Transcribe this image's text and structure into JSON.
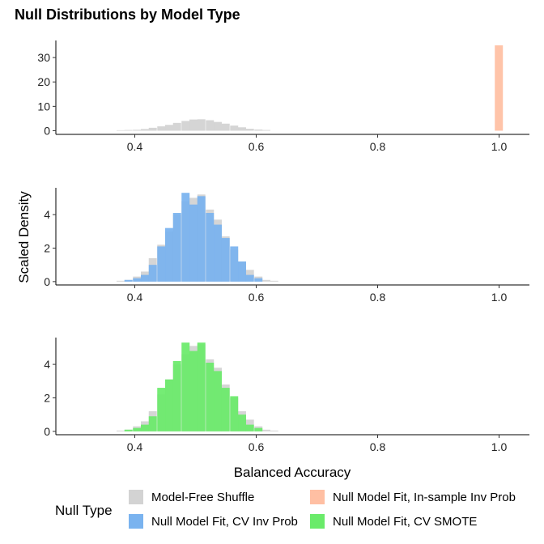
{
  "chart_data": {
    "type": "histogram-facets",
    "title": "Null Distributions by Model Type",
    "xlabel": "Balanced Accuracy",
    "ylabel": "Scaled Density",
    "xlim": [
      0.27,
      1.05
    ],
    "xticks": [
      0.4,
      0.6,
      0.8,
      1.0
    ],
    "xtick_labels": [
      "0.4",
      "0.6",
      "0.8",
      "1.0"
    ],
    "bin_width": 0.0133,
    "legend": {
      "title": "Null Type",
      "position": "bottom",
      "entries": [
        {
          "label": "Model-Free Shuffle",
          "color": "#d3d3d3"
        },
        {
          "label": "Null Model Fit, In-sample Inv Prob",
          "color": "#ffbfa3"
        },
        {
          "label": "Null Model Fit, CV Inv Prob",
          "color": "#7ab3ef"
        },
        {
          "label": "Null Model Fit, CV SMOTE",
          "color": "#6aeb6a"
        }
      ]
    },
    "facets": [
      {
        "ylim": [
          -1.5,
          37
        ],
        "yticks": [
          0,
          10,
          20,
          30
        ],
        "series": [
          {
            "name": "Model-Free Shuffle",
            "color": "#d3d3d3",
            "bins": [
              [
                0.37,
                0.2
              ],
              [
                0.383,
                0.3
              ],
              [
                0.397,
                0.4
              ],
              [
                0.41,
                0.7
              ],
              [
                0.423,
                1.2
              ],
              [
                0.437,
                1.8
              ],
              [
                0.45,
                2.4
              ],
              [
                0.463,
                3.2
              ],
              [
                0.477,
                4.0
              ],
              [
                0.49,
                4.6
              ],
              [
                0.503,
                4.7
              ],
              [
                0.517,
                4.3
              ],
              [
                0.53,
                3.6
              ],
              [
                0.543,
                2.9
              ],
              [
                0.557,
                2.1
              ],
              [
                0.57,
                1.4
              ],
              [
                0.583,
                0.8
              ],
              [
                0.597,
                0.5
              ],
              [
                0.61,
                0.3
              ]
            ]
          },
          {
            "name": "Null Model Fit, In-sample Inv Prob",
            "color": "#ffbfa3",
            "bins": [
              [
                0.993,
                35
              ]
            ]
          }
        ]
      },
      {
        "ylim": [
          -0.2,
          5.6
        ],
        "yticks": [
          0,
          2,
          4
        ],
        "series": [
          {
            "name": "Model-Free Shuffle",
            "color": "#d3d3d3",
            "bins": [
              [
                0.37,
                0.05
              ],
              [
                0.383,
                0.1
              ],
              [
                0.397,
                0.3
              ],
              [
                0.41,
                0.6
              ],
              [
                0.423,
                1.4
              ],
              [
                0.437,
                2.2
              ],
              [
                0.45,
                3.0
              ],
              [
                0.463,
                4.0
              ],
              [
                0.477,
                4.8
              ],
              [
                0.49,
                5.0
              ],
              [
                0.503,
                5.2
              ],
              [
                0.517,
                4.3
              ],
              [
                0.53,
                3.7
              ],
              [
                0.543,
                2.7
              ],
              [
                0.557,
                1.9
              ],
              [
                0.57,
                1.2
              ],
              [
                0.583,
                0.7
              ],
              [
                0.597,
                0.3
              ],
              [
                0.61,
                0.1
              ],
              [
                0.623,
                0.05
              ]
            ]
          },
          {
            "name": "Null Model Fit, CV Inv Prob",
            "color": "#7ab3ef",
            "bins": [
              [
                0.383,
                0.1
              ],
              [
                0.397,
                0.2
              ],
              [
                0.41,
                0.4
              ],
              [
                0.423,
                1.0
              ],
              [
                0.437,
                2.1
              ],
              [
                0.45,
                3.2
              ],
              [
                0.463,
                4.1
              ],
              [
                0.477,
                5.3
              ],
              [
                0.49,
                4.6
              ],
              [
                0.503,
                5.1
              ],
              [
                0.517,
                4.1
              ],
              [
                0.53,
                3.4
              ],
              [
                0.543,
                2.6
              ],
              [
                0.557,
                2.1
              ],
              [
                0.57,
                1.2
              ],
              [
                0.583,
                0.4
              ],
              [
                0.597,
                0.2
              ]
            ]
          }
        ]
      },
      {
        "ylim": [
          -0.2,
          5.6
        ],
        "yticks": [
          0,
          2,
          4
        ],
        "series": [
          {
            "name": "Model-Free Shuffle",
            "color": "#d3d3d3",
            "bins": [
              [
                0.37,
                0.05
              ],
              [
                0.383,
                0.1
              ],
              [
                0.397,
                0.3
              ],
              [
                0.41,
                0.6
              ],
              [
                0.423,
                1.2
              ],
              [
                0.437,
                2.2
              ],
              [
                0.45,
                3.1
              ],
              [
                0.463,
                4.0
              ],
              [
                0.477,
                4.6
              ],
              [
                0.49,
                5.1
              ],
              [
                0.503,
                5.2
              ],
              [
                0.517,
                4.3
              ],
              [
                0.53,
                3.8
              ],
              [
                0.543,
                2.8
              ],
              [
                0.557,
                2.0
              ],
              [
                0.57,
                1.2
              ],
              [
                0.583,
                0.7
              ],
              [
                0.597,
                0.3
              ],
              [
                0.61,
                0.1
              ],
              [
                0.623,
                0.05
              ]
            ]
          },
          {
            "name": "Null Model Fit, CV SMOTE",
            "color": "#6aeb6a",
            "bins": [
              [
                0.383,
                0.1
              ],
              [
                0.397,
                0.2
              ],
              [
                0.41,
                0.4
              ],
              [
                0.423,
                0.9
              ],
              [
                0.437,
                2.6
              ],
              [
                0.45,
                3.1
              ],
              [
                0.463,
                4.2
              ],
              [
                0.477,
                5.3
              ],
              [
                0.49,
                4.8
              ],
              [
                0.503,
                5.3
              ],
              [
                0.517,
                4.1
              ],
              [
                0.53,
                3.6
              ],
              [
                0.543,
                2.6
              ],
              [
                0.557,
                2.1
              ],
              [
                0.57,
                1.0
              ],
              [
                0.583,
                0.4
              ],
              [
                0.597,
                0.2
              ]
            ]
          }
        ]
      }
    ]
  }
}
